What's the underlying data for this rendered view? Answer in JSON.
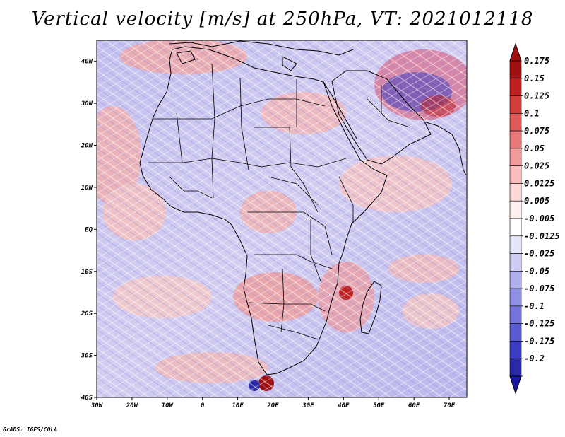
{
  "title": "Vertical velocity [m/s] at 250hPa, VT: 2021012118",
  "footer": "GrADS: IGES/COLA",
  "map": {
    "lon_range": [
      -30,
      75
    ],
    "lat_range": [
      -40,
      45
    ],
    "lat_ticks": [
      "40N",
      "30N",
      "20N",
      "10N",
      "EQ",
      "10S",
      "20S",
      "30S",
      "40S"
    ],
    "lon_ticks": [
      "30W",
      "20W",
      "10W",
      "0",
      "10E",
      "20E",
      "30E",
      "40E",
      "50E",
      "60E",
      "70E"
    ]
  },
  "colorbar": {
    "levels": [
      {
        "label": "0.175",
        "color": "#a01010"
      },
      {
        "label": "0.15",
        "color": "#c02020"
      },
      {
        "label": "0.125",
        "color": "#d23c3c"
      },
      {
        "label": "0.1",
        "color": "#e05858"
      },
      {
        "label": "0.075",
        "color": "#ea7a7a"
      },
      {
        "label": "0.05",
        "color": "#f29a9a"
      },
      {
        "label": "0.025",
        "color": "#f8bcbc"
      },
      {
        "label": "0.0125",
        "color": "#fcd8d8"
      },
      {
        "label": "0.005",
        "color": "#fff0f0"
      },
      {
        "label": "-0.005",
        "color": "#ffffff"
      },
      {
        "label": "-0.0125",
        "color": "#e6e6fa"
      },
      {
        "label": "-0.025",
        "color": "#ccccf4"
      },
      {
        "label": "-0.05",
        "color": "#b0b0ee"
      },
      {
        "label": "-0.075",
        "color": "#9090e6"
      },
      {
        "label": "-0.1",
        "color": "#7474dc"
      },
      {
        "label": "-0.125",
        "color": "#5a5ad0"
      },
      {
        "label": "-0.175",
        "color": "#3c3cc0"
      },
      {
        "label": "-0.2",
        "color": "#2a2aa8"
      }
    ],
    "top_color": "#a01010",
    "bottom_color": "#1818a0"
  }
}
